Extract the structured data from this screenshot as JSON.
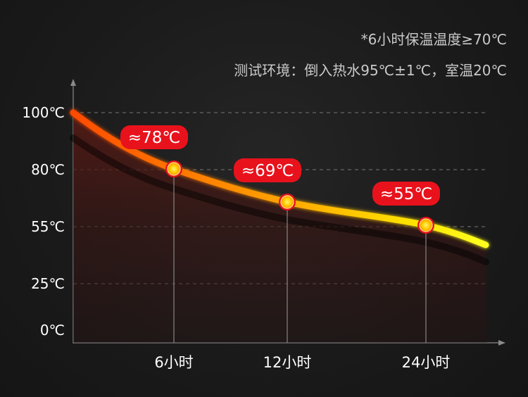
{
  "notes": {
    "line1": "*6小时保温温度≥70℃",
    "line2": "测试环境：倒入热水95℃±1℃，室温20℃"
  },
  "colors": {
    "background": "#1b1b1b",
    "curve_start": "#ff5a00",
    "curve_end": "#ffff00",
    "badge": "#e8121c",
    "grid": "#777777"
  },
  "chart_data": {
    "type": "line",
    "y_ticks": [
      "100℃",
      "80℃",
      "55℃",
      "25℃",
      "0℃"
    ],
    "x_ticks": [
      "6小时",
      "12小时",
      "24小时"
    ],
    "points": [
      {
        "x": "6小时",
        "y": 78,
        "label": "≈78℃"
      },
      {
        "x": "12小时",
        "y": 69,
        "label": "≈69℃"
      },
      {
        "x": "24小时",
        "y": 55,
        "label": "≈55℃"
      }
    ],
    "grid": true
  }
}
